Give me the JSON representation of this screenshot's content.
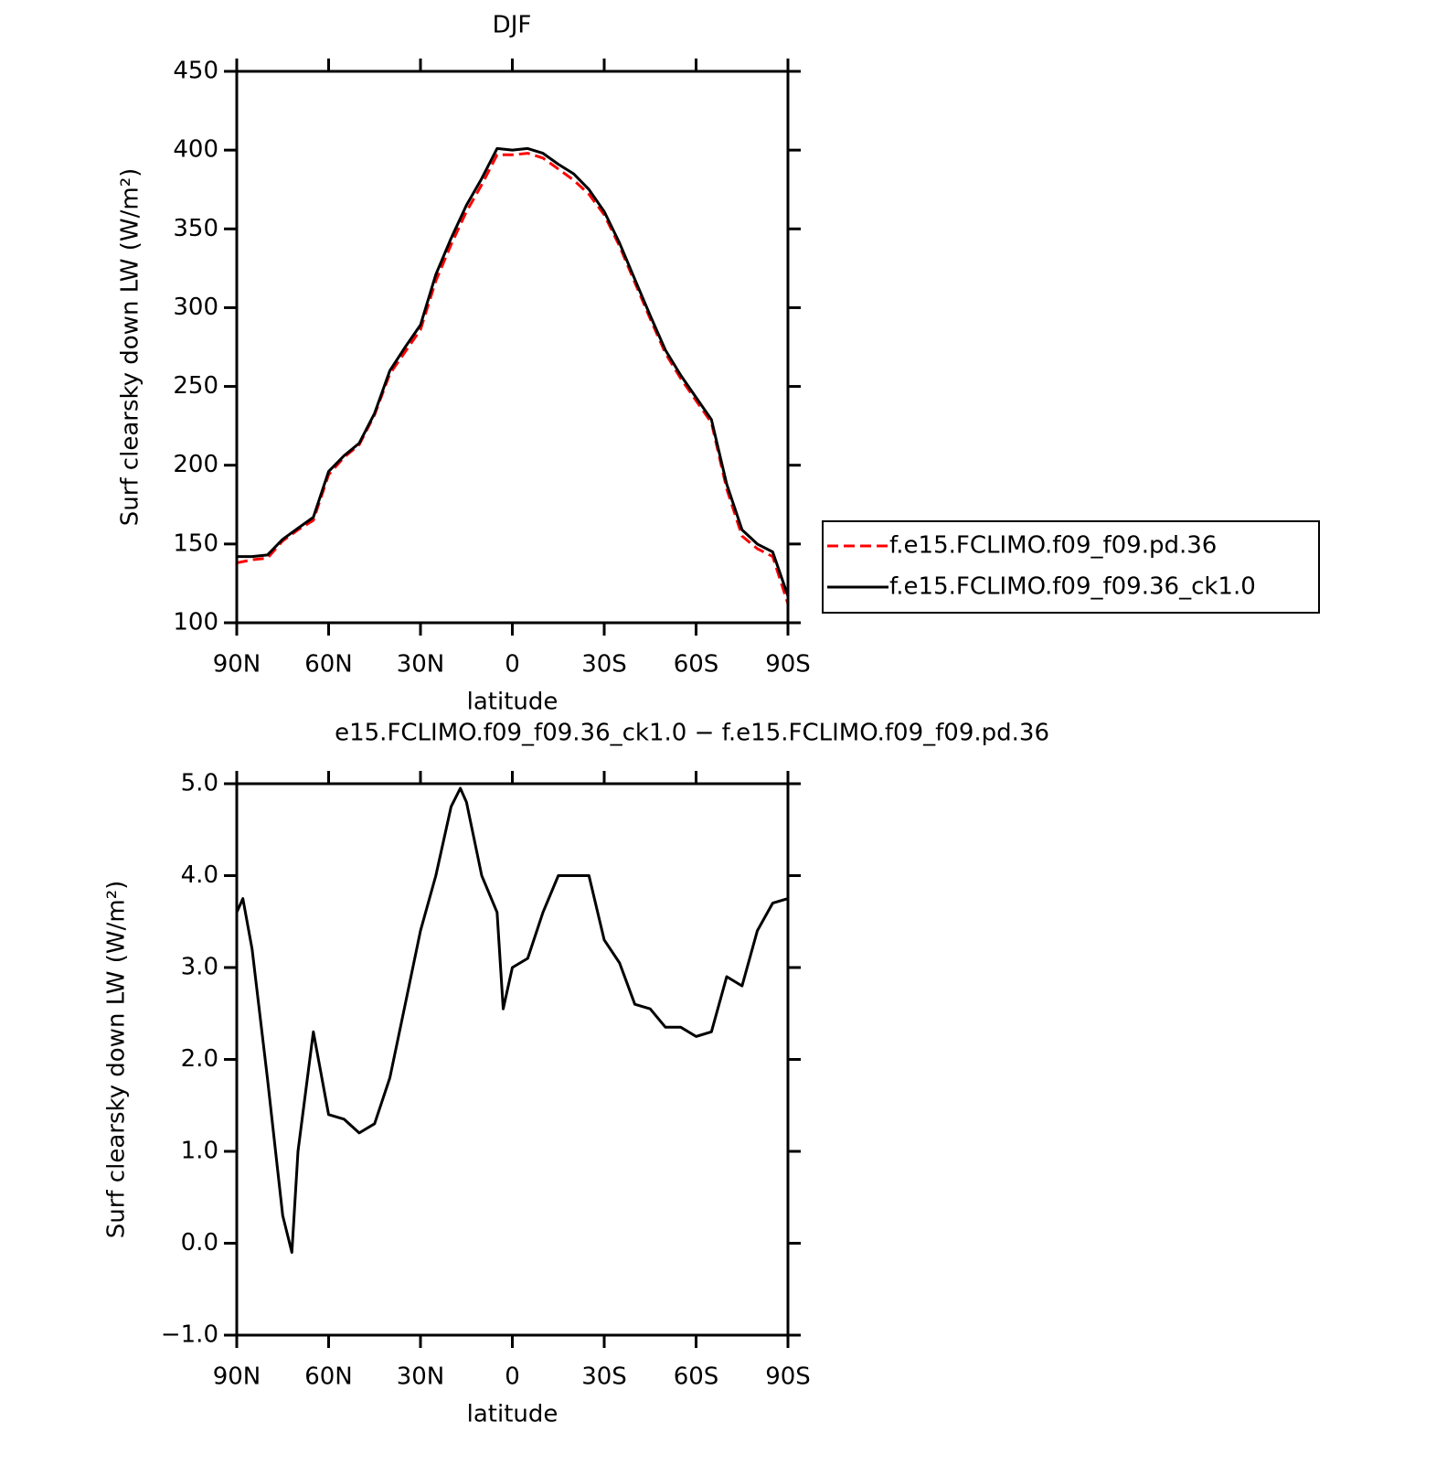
{
  "chart_data": [
    {
      "type": "line",
      "title": "DJF",
      "x_label": "latitude",
      "y_label": "Surf clearsky down LW (W/m²)",
      "x": [
        90,
        85,
        80,
        75,
        70,
        65,
        60,
        55,
        50,
        45,
        40,
        35,
        30,
        25,
        20,
        15,
        10,
        5,
        0,
        -5,
        -10,
        -15,
        -20,
        -25,
        -30,
        -35,
        -40,
        -45,
        -50,
        -55,
        -60,
        -65,
        -70,
        -75,
        -80,
        -85,
        -90
      ],
      "series": [
        {
          "name": "f.e15.FCLIMO.f09_f09.pd.36",
          "color": "#ff0000",
          "linestyle": "dashed",
          "values": [
            138,
            140,
            141,
            152,
            159,
            165,
            194,
            205,
            213,
            232,
            258,
            272,
            286,
            317,
            340,
            361,
            378,
            397,
            397,
            398,
            395,
            388,
            381,
            372,
            359,
            339,
            316,
            293,
            271,
            255,
            241,
            227,
            185,
            155,
            147,
            142,
            112
          ]
        },
        {
          "name": "f.e15.FCLIMO.f09_f09.36_ck1.0",
          "color": "#000000",
          "linestyle": "solid",
          "values": [
            142,
            142,
            143,
            153,
            160,
            167,
            196,
            206,
            214,
            233,
            260,
            275,
            289,
            321,
            344,
            365,
            382,
            401,
            400,
            401,
            398,
            391,
            385,
            375,
            361,
            341,
            318,
            295,
            273,
            257,
            243,
            229,
            188,
            159,
            150,
            145,
            117
          ]
        }
      ],
      "xlim": [
        90,
        -90
      ],
      "xticks": [
        {
          "value": 90,
          "label": "90N"
        },
        {
          "value": 60,
          "label": "60N"
        },
        {
          "value": 30,
          "label": "30N"
        },
        0,
        {
          "value": -30,
          "label": "30S"
        },
        {
          "value": -60,
          "label": "60S"
        },
        {
          "value": -90,
          "label": "90S"
        }
      ],
      "ylim": [
        100,
        450
      ],
      "yticks": [
        100,
        150,
        200,
        250,
        300,
        350,
        400,
        450
      ],
      "legend": "right"
    },
    {
      "type": "line",
      "title": "e15.FCLIMO.f09_f09.36_ck1.0 − f.e15.FCLIMO.f09_f09.pd.36",
      "x_label": "latitude",
      "y_label": "Surf clearsky down LW (W/m²)",
      "x": [
        90,
        88,
        85,
        80,
        75,
        72,
        70,
        65,
        60,
        55,
        50,
        45,
        40,
        35,
        30,
        25,
        20,
        17,
        15,
        10,
        5,
        3,
        0,
        -5,
        -10,
        -15,
        -20,
        -25,
        -30,
        -35,
        -40,
        -45,
        -50,
        -55,
        -60,
        -65,
        -70,
        -75,
        -80,
        -85,
        -90
      ],
      "series": [
        {
          "color": "#000000",
          "linestyle": "solid",
          "values": [
            3.6,
            3.75,
            3.2,
            1.8,
            0.3,
            -0.1,
            1.0,
            2.3,
            1.4,
            1.35,
            1.2,
            1.3,
            1.8,
            2.6,
            3.4,
            4.0,
            4.75,
            4.95,
            4.8,
            4.0,
            3.6,
            2.55,
            3.0,
            3.1,
            3.6,
            4.0,
            4.0,
            4.0,
            3.3,
            3.05,
            2.6,
            2.55,
            2.35,
            2.35,
            2.25,
            2.3,
            2.9,
            2.8,
            3.4,
            3.7,
            3.75
          ]
        }
      ],
      "xlim": [
        90,
        -90
      ],
      "xticks": [
        {
          "value": 90,
          "label": "90N"
        },
        {
          "value": 60,
          "label": "60N"
        },
        {
          "value": 30,
          "label": "30N"
        },
        0,
        {
          "value": -30,
          "label": "30S"
        },
        {
          "value": -60,
          "label": "60S"
        },
        {
          "value": -90,
          "label": "90S"
        }
      ],
      "ylim": [
        -1,
        5
      ],
      "yticks": [
        {
          "value": -1,
          "label": "−1.0"
        },
        {
          "value": 0,
          "label": "0.0"
        },
        {
          "value": 1,
          "label": "1.0"
        },
        {
          "value": 2,
          "label": "2.0"
        },
        {
          "value": 3,
          "label": "3.0"
        },
        {
          "value": 4,
          "label": "4.0"
        },
        {
          "value": 5,
          "label": "5.0"
        }
      ]
    }
  ]
}
